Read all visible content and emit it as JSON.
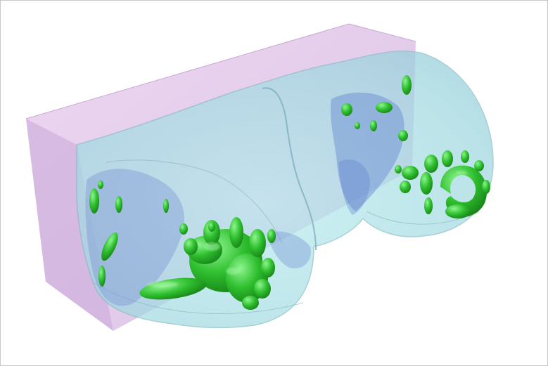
{
  "viewer": {
    "background": "#ffffff",
    "border_color": "#c8c8c8"
  },
  "scene": {
    "bounding_box": {
      "name": "bounding-volume",
      "color": "#d9b8e4",
      "opacity": 0.6
    },
    "surface": {
      "name": "translucent-anatomy-surface",
      "color": "#a6e0e3",
      "edge_color": "#7fb7bd",
      "opacity": 0.55
    },
    "inner_layer": {
      "name": "inner-blue-layer",
      "color": "#6f8fd6",
      "opacity": 0.35
    },
    "segmentations": {
      "name": "segmented-regions",
      "color": "#2fb62f",
      "highlight": "#7df27d",
      "shadow": "#137a13"
    }
  }
}
